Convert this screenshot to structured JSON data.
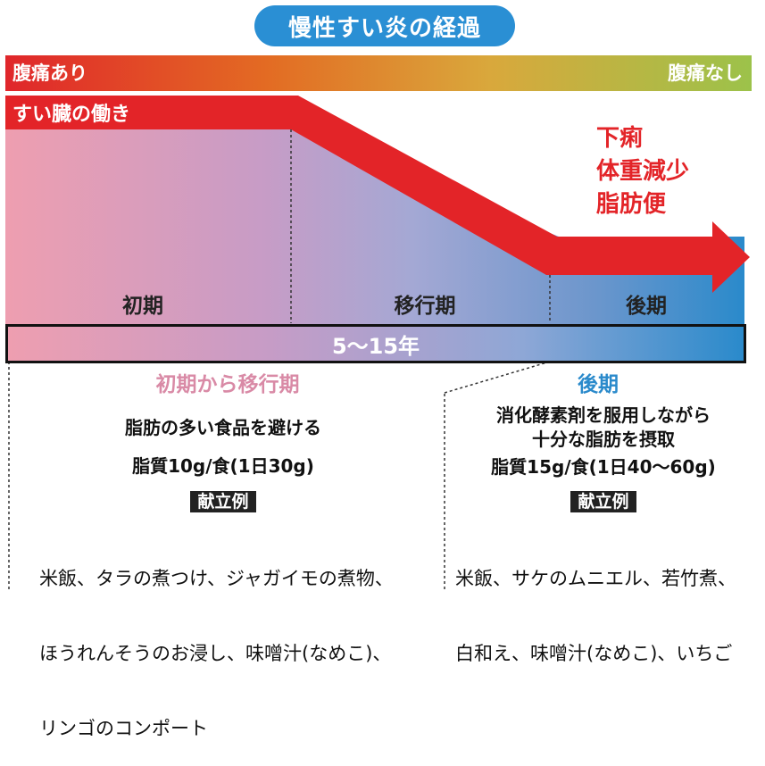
{
  "title": "慢性すい炎の経過",
  "pain": {
    "left_label": "腹痛あり",
    "right_label": "腹痛なし"
  },
  "pancreas_label": "すい臓の働き",
  "symptoms": [
    "下痢",
    "体重減少",
    "脂肪便"
  ],
  "phases": {
    "early": "初期",
    "transition": "移行期",
    "late": "後期"
  },
  "duration": "5〜15年",
  "early_section": {
    "heading": "初期から移行期",
    "advice": "脂肪の多い食品を避ける",
    "fat_intake": "脂質10g/食(1日30g)",
    "menu_tag": "献立例",
    "menu_lines": [
      "米飯、タラの煮つけ、ジャガイモの煮物、",
      "ほうれんそうのお浸し、味噌汁(なめこ)、",
      "リンゴのコンポート"
    ]
  },
  "late_section": {
    "heading": "後期",
    "advice_lines": [
      "消化酵素剤を服用しながら",
      "十分な脂肪を摂取"
    ],
    "fat_intake": "脂質15g/食(1日40〜60g)",
    "menu_tag": "献立例",
    "menu_lines": [
      "米飯、サケのムニエル、若竹煮、",
      "白和え、味噌汁(なめこ)、いちご"
    ]
  },
  "colors": {
    "title_bg": "#2a8fd4",
    "arrow": "#e32428",
    "pink_heading": "#d98aa6",
    "blue_heading": "#2a8acb"
  }
}
